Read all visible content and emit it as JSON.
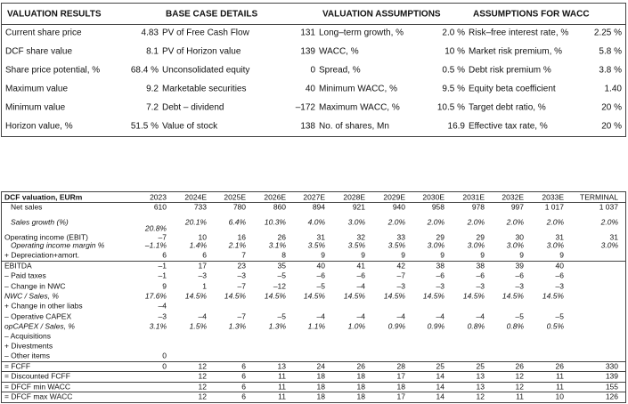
{
  "valuation_summary": {
    "headers": [
      "VALUATION RESULTS",
      "BASE CASE DETAILS",
      "VALUATION ASSUMPTIONS",
      "ASSUMPTIONS FOR WACC"
    ],
    "rows": [
      [
        "Current share price",
        "4.83",
        "PV of Free Cash Flow",
        "131",
        "Long–term growth, %",
        "2.0 %",
        "Risk–free interest rate, %",
        "2.25 %"
      ],
      [
        "DCF share value",
        "8.1",
        "PV of Horizon value",
        "139",
        "WACC, %",
        "10 %",
        "Market risk premium, %",
        "5.8 %"
      ],
      [
        "Share price potential, %",
        "68.4 %",
        "Unconsolidated equity",
        "0",
        "Spread, %",
        "0.5 %",
        "Debt risk premium %",
        "3.8 %"
      ],
      [
        "Maximum value",
        "9.2",
        "Marketable securities",
        "40",
        "Minimum WACC, %",
        "9.5 %",
        "Equity beta coefficient",
        "1.40"
      ],
      [
        "Minimum value",
        "7.2",
        "Debt – dividend",
        "–172",
        "Maximum WACC, %",
        "10.5 %",
        "Target debt ratio, %",
        "20 %"
      ],
      [
        "Horizon value, %",
        "51.5 %",
        "Value of stock",
        "138",
        "No. of shares, Mn",
        "16.9",
        "Effective tax rate, %",
        "20 %"
      ]
    ]
  },
  "dcf_table": {
    "title": "DCF valuation, EURm",
    "columns": [
      "2023",
      "2024E",
      "2025E",
      "2026E",
      "2027E",
      "2028E",
      "2029E",
      "2030E",
      "2031E",
      "2032E",
      "2033E",
      "TERMINAL"
    ],
    "rows": [
      {
        "label": "Net sales",
        "values": [
          "610",
          "733",
          "780",
          "860",
          "894",
          "921",
          "940",
          "958",
          "978",
          "997",
          "1 017",
          "1 037"
        ]
      },
      {
        "label": "Sales growth (%)",
        "values": [
          "20.8%",
          "20.1%",
          "6.4%",
          "10.3%",
          "4.0%",
          "3.0%",
          "2.0%",
          "2.0%",
          "2.0%",
          "2.0%",
          "2.0%",
          "2.0%"
        ]
      },
      {
        "label": "Operating income (EBIT)",
        "values": [
          "–7",
          "10",
          "16",
          "26",
          "31",
          "32",
          "33",
          "29",
          "29",
          "30",
          "31",
          "31"
        ]
      },
      {
        "label": "Operating income margin %",
        "values": [
          "–1.1%",
          "1.4%",
          "2.1%",
          "3.1%",
          "3.5%",
          "3.5%",
          "3.5%",
          "3.0%",
          "3.0%",
          "3.0%",
          "3.0%",
          "3.0%"
        ]
      },
      {
        "label": "+ Depreciation+amort.",
        "values": [
          "6",
          "6",
          "7",
          "8",
          "9",
          "9",
          "9",
          "9",
          "9",
          "9",
          "9",
          null
        ]
      },
      {
        "label": "EBITDA",
        "values": [
          "–1",
          "17",
          "23",
          "35",
          "40",
          "41",
          "42",
          "38",
          "38",
          "39",
          "40",
          null
        ]
      },
      {
        "label": "– Paid taxes",
        "values": [
          "–1",
          "–3",
          "–3",
          "–5",
          "–6",
          "–6",
          "–7",
          "–6",
          "–6",
          "–6",
          "–6",
          null
        ]
      },
      {
        "label": "– Change in NWC",
        "values": [
          "9",
          "1",
          "–7",
          "–12",
          "–5",
          "–4",
          "–3",
          "–3",
          "–3",
          "–3",
          "–3",
          null
        ]
      },
      {
        "label": "NWC / Sales, %",
        "values": [
          "17.6%",
          "14.5%",
          "14.5%",
          "14.5%",
          "14.5%",
          "14.5%",
          "14.5%",
          "14.5%",
          "14.5%",
          "14.5%",
          "14.5%",
          null
        ]
      },
      {
        "label": "+ Change in other liabs",
        "values": [
          "–4",
          null,
          null,
          null,
          null,
          null,
          null,
          null,
          null,
          null,
          null,
          null
        ]
      },
      {
        "label": "– Operative CAPEX",
        "values": [
          "–3",
          "–4",
          "–7",
          "–5",
          "–4",
          "–4",
          "–4",
          "–4",
          "–4",
          "–5",
          "–5",
          null
        ]
      },
      {
        "label": "opCAPEX / Sales, %",
        "values": [
          "3.1%",
          "1.5%",
          "1.3%",
          "1.3%",
          "1.1%",
          "1.0%",
          "0.9%",
          "0.9%",
          "0.8%",
          "0.8%",
          "0.5%",
          null
        ]
      },
      {
        "label": "– Acquisitions",
        "values": [
          null,
          null,
          null,
          null,
          null,
          null,
          null,
          null,
          null,
          null,
          null,
          null
        ]
      },
      {
        "label": "+ Divestments",
        "values": [
          null,
          null,
          null,
          null,
          null,
          null,
          null,
          null,
          null,
          null,
          null,
          null
        ]
      },
      {
        "label": "– Other items",
        "values": [
          "0",
          null,
          null,
          null,
          null,
          null,
          null,
          null,
          null,
          null,
          null,
          null
        ]
      },
      {
        "label": "= FCFF",
        "values": [
          "0",
          "12",
          "6",
          "13",
          "24",
          "26",
          "28",
          "25",
          "25",
          "26",
          "26",
          "330"
        ]
      },
      {
        "label": "= Discounted FCFF",
        "values": [
          null,
          "12",
          "6",
          "11",
          "18",
          "18",
          "17",
          "14",
          "13",
          "12",
          "11",
          "139"
        ]
      },
      {
        "label": "= DFCF min WACC",
        "values": [
          null,
          "12",
          "6",
          "11",
          "18",
          "18",
          "18",
          "14",
          "13",
          "12",
          "11",
          "155"
        ]
      },
      {
        "label": "= DFCF max WACC",
        "values": [
          null,
          "12",
          "6",
          "11",
          "18",
          "18",
          "17",
          "14",
          "12",
          "11",
          "10",
          "126"
        ]
      }
    ]
  }
}
